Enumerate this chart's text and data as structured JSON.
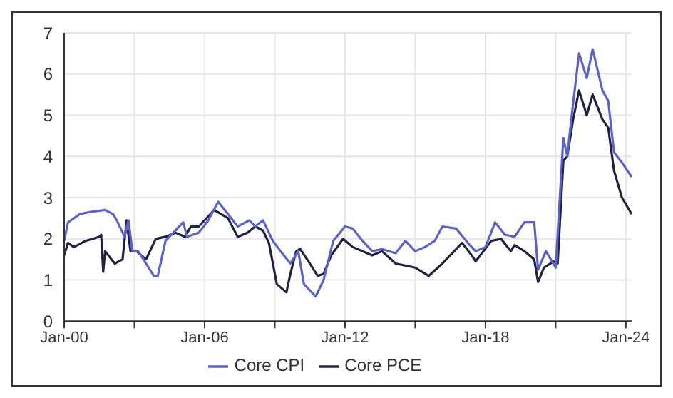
{
  "chart_data": {
    "type": "line",
    "xlim": [
      "2000-01",
      "2024-04"
    ],
    "xticks": [
      {
        "value": "2000-01",
        "label": "Jan-00"
      },
      {
        "value": "2003-01",
        "label": null
      },
      {
        "value": "2006-01",
        "label": "Jan-06"
      },
      {
        "value": "2009-01",
        "label": null
      },
      {
        "value": "2012-01",
        "label": "Jan-12"
      },
      {
        "value": "2015-01",
        "label": null
      },
      {
        "value": "2018-01",
        "label": "Jan-18"
      },
      {
        "value": "2021-01",
        "label": null
      },
      {
        "value": "2024-01",
        "label": "Jan-24"
      }
    ],
    "ylim": [
      0,
      7
    ],
    "yticks": [
      0,
      1,
      2,
      3,
      4,
      5,
      6,
      7
    ],
    "grid": true,
    "legend": "bottom",
    "marker": "none",
    "line_style": "solid",
    "series": [
      {
        "name": "Core PCE",
        "color": "#1f2340",
        "x": [
          "2000-01",
          "2000-03",
          "2000-06",
          "2000-12",
          "2001-07",
          "2001-08",
          "2001-09",
          "2001-10",
          "2002-03",
          "2002-07",
          "2002-09",
          "2002-11",
          "2003-02",
          "2003-07",
          "2003-12",
          "2004-05",
          "2004-10",
          "2005-03",
          "2005-06",
          "2005-10",
          "2006-06",
          "2007-01",
          "2007-06",
          "2007-11",
          "2008-03",
          "2008-07",
          "2008-10",
          "2009-02",
          "2009-07",
          "2009-09",
          "2009-12",
          "2010-02",
          "2010-07",
          "2010-11",
          "2011-02",
          "2011-06",
          "2011-12",
          "2012-05",
          "2013-03",
          "2013-08",
          "2014-03",
          "2015-01",
          "2015-08",
          "2016-03",
          "2017-01",
          "2017-06",
          "2017-08",
          "2018-04",
          "2018-09",
          "2019-02",
          "2019-04",
          "2019-09",
          "2020-02",
          "2020-04",
          "2020-07",
          "2020-12",
          "2021-02",
          "2021-05",
          "2021-07",
          "2021-10",
          "2022-01",
          "2022-05",
          "2022-08",
          "2023-01",
          "2023-04",
          "2023-07",
          "2023-11",
          "2024-04"
        ],
        "values": [
          1.6,
          1.9,
          1.8,
          1.95,
          2.05,
          2.1,
          1.2,
          1.7,
          1.4,
          1.5,
          2.45,
          1.7,
          1.7,
          1.5,
          2.0,
          2.05,
          2.15,
          2.05,
          2.3,
          2.3,
          2.7,
          2.5,
          2.05,
          2.15,
          2.3,
          2.2,
          1.9,
          0.9,
          0.7,
          1.15,
          1.7,
          1.75,
          1.4,
          1.1,
          1.15,
          1.6,
          2.0,
          1.8,
          1.6,
          1.7,
          1.4,
          1.3,
          1.1,
          1.4,
          1.9,
          1.6,
          1.45,
          1.95,
          2.0,
          1.7,
          1.85,
          1.7,
          1.5,
          0.95,
          1.3,
          1.45,
          1.4,
          3.9,
          4.0,
          4.9,
          5.6,
          5.0,
          5.5,
          4.9,
          4.7,
          3.65,
          3.0,
          2.6
        ]
      },
      {
        "name": "Core CPI",
        "color": "#5b63c8",
        "x": [
          "2000-01",
          "2000-03",
          "2000-09",
          "2001-02",
          "2001-10",
          "2002-02",
          "2002-04",
          "2002-08",
          "2002-10",
          "2002-12",
          "2003-03",
          "2003-07",
          "2003-11",
          "2004-01",
          "2004-05",
          "2005-02",
          "2005-04",
          "2005-10",
          "2006-03",
          "2006-08",
          "2007-01",
          "2007-06",
          "2007-12",
          "2008-03",
          "2008-07",
          "2008-12",
          "2009-04",
          "2009-09",
          "2010-01",
          "2010-04",
          "2010-10",
          "2011-02",
          "2011-07",
          "2012-01",
          "2012-05",
          "2012-10",
          "2013-03",
          "2013-08",
          "2014-03",
          "2014-08",
          "2015-01",
          "2015-06",
          "2015-11",
          "2016-03",
          "2016-10",
          "2017-04",
          "2017-08",
          "2018-01",
          "2018-06",
          "2018-11",
          "2019-04",
          "2019-09",
          "2020-02",
          "2020-04",
          "2020-08",
          "2021-01",
          "2021-05",
          "2021-07",
          "2021-09",
          "2022-01",
          "2022-05",
          "2022-08",
          "2023-01",
          "2023-04",
          "2023-07",
          "2023-11",
          "2024-04"
        ],
        "values": [
          1.95,
          2.4,
          2.6,
          2.65,
          2.7,
          2.6,
          2.45,
          2.05,
          2.45,
          1.7,
          1.7,
          1.4,
          1.1,
          1.1,
          1.95,
          2.4,
          2.05,
          2.15,
          2.45,
          2.9,
          2.6,
          2.3,
          2.45,
          2.3,
          2.45,
          1.95,
          1.7,
          1.4,
          1.7,
          0.9,
          0.6,
          1.0,
          1.95,
          2.3,
          2.25,
          1.95,
          1.7,
          1.75,
          1.65,
          1.95,
          1.7,
          1.8,
          1.95,
          2.3,
          2.25,
          1.9,
          1.7,
          1.8,
          2.4,
          2.1,
          2.05,
          2.4,
          2.4,
          1.25,
          1.7,
          1.3,
          4.45,
          4.0,
          4.9,
          6.5,
          5.9,
          6.6,
          5.6,
          5.35,
          4.1,
          3.85,
          3.5
        ]
      }
    ]
  }
}
